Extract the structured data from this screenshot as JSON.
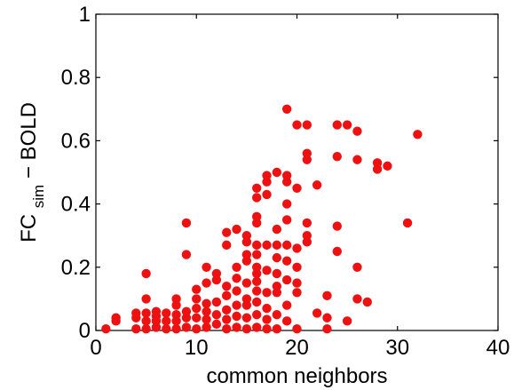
{
  "chart_data": {
    "type": "scatter",
    "title": "",
    "xlabel": "common neighbors",
    "ylabel": {
      "base": "FC",
      "subscript": "sim",
      "suffix": " − BOLD"
    },
    "xlim": [
      0,
      40
    ],
    "ylim": [
      0,
      1
    ],
    "x_ticks": [
      0,
      10,
      20,
      30,
      40
    ],
    "x_tick_labels": [
      "0",
      "10",
      "20",
      "30",
      "40"
    ],
    "y_ticks": [
      0,
      0.2,
      0.4,
      0.6,
      0.8,
      1
    ],
    "y_tick_labels": [
      "0",
      "0.2",
      "0.4",
      "0.6",
      "0.8",
      "1"
    ],
    "grid": false,
    "legend": "none",
    "colors": {
      "marker": "#ee1111",
      "axes": "#000000",
      "background": "#ffffff"
    },
    "series": [
      {
        "points": [
          [
            1,
            0.005
          ],
          [
            2,
            0.03
          ],
          [
            2,
            0.04
          ],
          [
            4,
            0.005
          ],
          [
            4,
            0.04
          ],
          [
            4,
            0.055
          ],
          [
            5,
            0.005
          ],
          [
            5,
            0.03
          ],
          [
            5,
            0.055
          ],
          [
            5,
            0.1
          ],
          [
            5,
            0.18
          ],
          [
            6,
            0.01
          ],
          [
            6,
            0.03
          ],
          [
            6,
            0.06
          ],
          [
            6,
            0.045
          ],
          [
            7,
            0.005
          ],
          [
            7,
            0.03
          ],
          [
            7,
            0.055
          ],
          [
            8,
            0.005
          ],
          [
            8,
            0.03
          ],
          [
            8,
            0.05
          ],
          [
            8,
            0.08
          ],
          [
            8,
            0.1
          ],
          [
            9,
            0.01
          ],
          [
            9,
            0.04
          ],
          [
            9,
            0.06
          ],
          [
            9,
            0.24
          ],
          [
            9,
            0.34
          ],
          [
            10,
            0.005
          ],
          [
            10,
            0.04
          ],
          [
            10,
            0.07
          ],
          [
            10,
            0.1
          ],
          [
            10,
            0.13
          ],
          [
            11,
            0.01
          ],
          [
            11,
            0.035
          ],
          [
            11,
            0.06
          ],
          [
            11,
            0.085
          ],
          [
            11,
            0.15
          ],
          [
            11,
            0.2
          ],
          [
            12,
            0.02
          ],
          [
            12,
            0.05
          ],
          [
            12,
            0.09
          ],
          [
            12,
            0.16
          ],
          [
            12,
            0.18
          ],
          [
            13,
            0.005
          ],
          [
            13,
            0.035
          ],
          [
            13,
            0.065
          ],
          [
            13,
            0.11
          ],
          [
            13,
            0.14
          ],
          [
            13,
            0.27
          ],
          [
            13,
            0.31
          ],
          [
            14,
            0.01
          ],
          [
            14,
            0.045
          ],
          [
            14,
            0.08
          ],
          [
            14,
            0.125
          ],
          [
            14,
            0.165
          ],
          [
            14,
            0.2
          ],
          [
            14,
            0.32
          ],
          [
            15,
            0.005
          ],
          [
            15,
            0.04
          ],
          [
            15,
            0.08
          ],
          [
            15,
            0.1
          ],
          [
            15,
            0.15
          ],
          [
            15,
            0.22
          ],
          [
            15,
            0.24
          ],
          [
            15,
            0.28
          ],
          [
            15,
            0.3
          ],
          [
            16,
            0.01
          ],
          [
            16,
            0.05
          ],
          [
            16,
            0.09
          ],
          [
            16,
            0.125
          ],
          [
            16,
            0.155
          ],
          [
            16,
            0.18
          ],
          [
            16,
            0.2
          ],
          [
            16,
            0.24
          ],
          [
            16,
            0.27
          ],
          [
            16,
            0.34
          ],
          [
            16,
            0.36
          ],
          [
            16,
            0.42
          ],
          [
            16,
            0.45
          ],
          [
            17,
            0.005
          ],
          [
            17,
            0.035
          ],
          [
            17,
            0.07
          ],
          [
            17,
            0.12
          ],
          [
            17,
            0.19
          ],
          [
            17,
            0.27
          ],
          [
            17,
            0.43
          ],
          [
            17,
            0.47
          ],
          [
            17,
            0.49
          ],
          [
            18,
            0.005
          ],
          [
            18,
            0.05
          ],
          [
            18,
            0.12
          ],
          [
            18,
            0.14
          ],
          [
            18,
            0.18
          ],
          [
            18,
            0.23
          ],
          [
            18,
            0.27
          ],
          [
            18,
            0.32
          ],
          [
            18,
            0.5
          ],
          [
            19,
            0.03
          ],
          [
            19,
            0.08
          ],
          [
            19,
            0.16
          ],
          [
            19,
            0.22
          ],
          [
            19,
            0.27
          ],
          [
            19,
            0.35
          ],
          [
            19,
            0.4
          ],
          [
            19,
            0.47
          ],
          [
            19,
            0.49
          ],
          [
            19,
            0.7
          ],
          [
            20,
            0.005
          ],
          [
            20,
            0.12
          ],
          [
            20,
            0.15
          ],
          [
            20,
            0.2
          ],
          [
            20,
            0.26
          ],
          [
            20,
            0.45
          ],
          [
            20,
            0.65
          ],
          [
            21,
            0.28
          ],
          [
            21,
            0.3
          ],
          [
            21,
            0.34
          ],
          [
            21,
            0.54
          ],
          [
            21,
            0.56
          ],
          [
            21,
            0.65
          ],
          [
            22,
            0.055
          ],
          [
            22,
            0.46
          ],
          [
            23,
            0.005
          ],
          [
            23,
            0.04
          ],
          [
            23,
            0.11
          ],
          [
            24,
            0.25
          ],
          [
            24,
            0.33
          ],
          [
            24,
            0.55
          ],
          [
            24,
            0.65
          ],
          [
            25,
            0.03
          ],
          [
            25,
            0.65
          ],
          [
            26,
            0.1
          ],
          [
            26,
            0.2
          ],
          [
            26,
            0.54
          ],
          [
            26,
            0.63
          ],
          [
            27,
            0.09
          ],
          [
            28,
            0.51
          ],
          [
            28,
            0.53
          ],
          [
            29,
            0.52
          ],
          [
            31,
            0.34
          ],
          [
            32,
            0.62
          ]
        ]
      }
    ]
  }
}
